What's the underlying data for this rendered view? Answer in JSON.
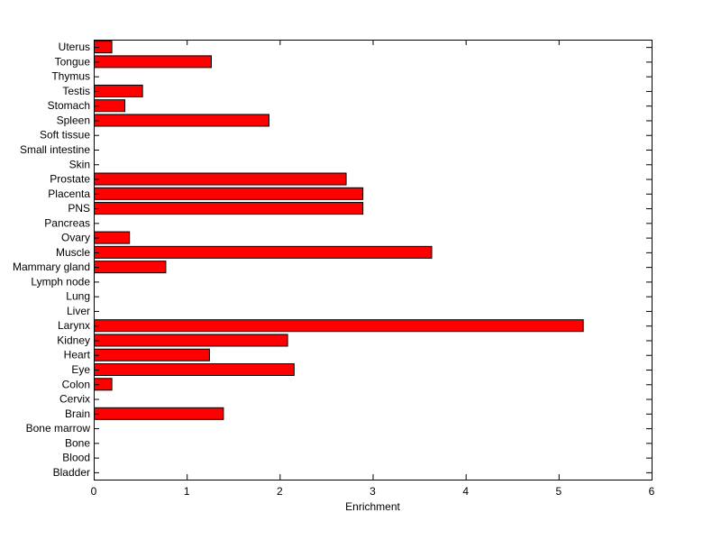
{
  "chart_data": {
    "type": "bar",
    "orientation": "horizontal",
    "categories": [
      "Uterus",
      "Tongue",
      "Thymus",
      "Testis",
      "Stomach",
      "Spleen",
      "Soft tissue",
      "Small intestine",
      "Skin",
      "Prostate",
      "Placenta",
      "PNS",
      "Pancreas",
      "Ovary",
      "Muscle",
      "Mammary gland",
      "Lymph node",
      "Lung",
      "Liver",
      "Larynx",
      "Kidney",
      "Heart",
      "Eye",
      "Colon",
      "Cervix",
      "Brain",
      "Bone marrow",
      "Bone",
      "Blood",
      "Bladder"
    ],
    "values": [
      0.19,
      1.26,
      0,
      0.52,
      0.33,
      1.88,
      0,
      0,
      0,
      2.71,
      2.89,
      2.89,
      0,
      0.38,
      3.63,
      0.77,
      0,
      0,
      0,
      5.26,
      2.08,
      1.24,
      2.15,
      0.19,
      0,
      1.39,
      0,
      0,
      0,
      0
    ],
    "xlabel": "Enrichment",
    "ylabel": "",
    "xlim": [
      0,
      6
    ],
    "xticks": [
      0,
      1,
      2,
      3,
      4,
      5,
      6
    ],
    "grid": false,
    "bar_color": "#ff0000",
    "bar_edge_color": "#000000"
  }
}
